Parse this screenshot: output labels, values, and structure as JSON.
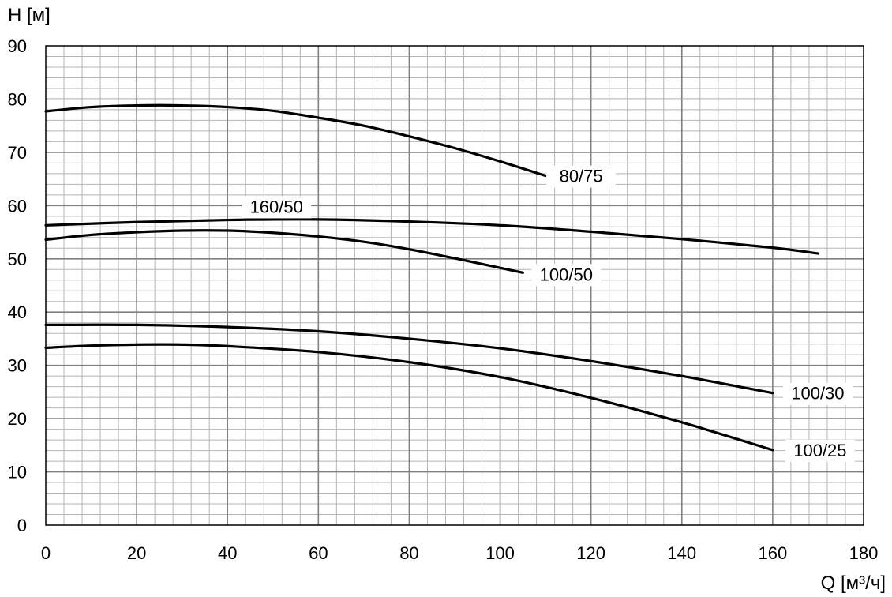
{
  "chart_data": {
    "type": "line",
    "xlabel": "Q [м³/ч]",
    "ylabel": "H [м]",
    "xlim": [
      0,
      180
    ],
    "ylim": [
      0,
      90
    ],
    "x_ticks": [
      "0",
      "20",
      "40",
      "60",
      "80",
      "100",
      "120",
      "140",
      "160",
      "180"
    ],
    "y_ticks": [
      "0",
      "10",
      "20",
      "30",
      "40",
      "50",
      "60",
      "70",
      "80",
      "90"
    ],
    "grid": {
      "major": true,
      "minor": true
    },
    "series": [
      {
        "name": "80/75",
        "points": [
          [
            0,
            77.7
          ],
          [
            10,
            78.5
          ],
          [
            20,
            78.8
          ],
          [
            30,
            78.8
          ],
          [
            40,
            78.5
          ],
          [
            50,
            77.8
          ],
          [
            60,
            76.5
          ],
          [
            70,
            75.0
          ],
          [
            80,
            73.0
          ],
          [
            90,
            70.8
          ],
          [
            100,
            68.3
          ],
          [
            110,
            65.6
          ]
        ]
      },
      {
        "name": "160/50",
        "points": [
          [
            0,
            56.3
          ],
          [
            20,
            56.9
          ],
          [
            40,
            57.3
          ],
          [
            60,
            57.4
          ],
          [
            80,
            57.0
          ],
          [
            100,
            56.3
          ],
          [
            120,
            55.1
          ],
          [
            140,
            53.7
          ],
          [
            160,
            52.1
          ],
          [
            170,
            51.0
          ]
        ]
      },
      {
        "name": "100/50",
        "points": [
          [
            0,
            53.6
          ],
          [
            10,
            54.5
          ],
          [
            20,
            55.0
          ],
          [
            30,
            55.3
          ],
          [
            40,
            55.3
          ],
          [
            50,
            54.9
          ],
          [
            60,
            54.2
          ],
          [
            70,
            53.2
          ],
          [
            80,
            51.8
          ],
          [
            90,
            50.1
          ],
          [
            100,
            48.3
          ],
          [
            105,
            47.4
          ]
        ]
      },
      {
        "name": "100/30",
        "points": [
          [
            0,
            37.6
          ],
          [
            20,
            37.6
          ],
          [
            40,
            37.2
          ],
          [
            60,
            36.4
          ],
          [
            80,
            35.0
          ],
          [
            100,
            33.2
          ],
          [
            120,
            30.8
          ],
          [
            140,
            28.0
          ],
          [
            160,
            24.8
          ]
        ]
      },
      {
        "name": "100/25",
        "points": [
          [
            0,
            33.3
          ],
          [
            10,
            33.7
          ],
          [
            20,
            33.9
          ],
          [
            30,
            33.9
          ],
          [
            40,
            33.6
          ],
          [
            60,
            32.5
          ],
          [
            80,
            30.6
          ],
          [
            100,
            27.8
          ],
          [
            120,
            23.9
          ],
          [
            140,
            19.3
          ],
          [
            160,
            14.1
          ]
        ]
      }
    ]
  }
}
